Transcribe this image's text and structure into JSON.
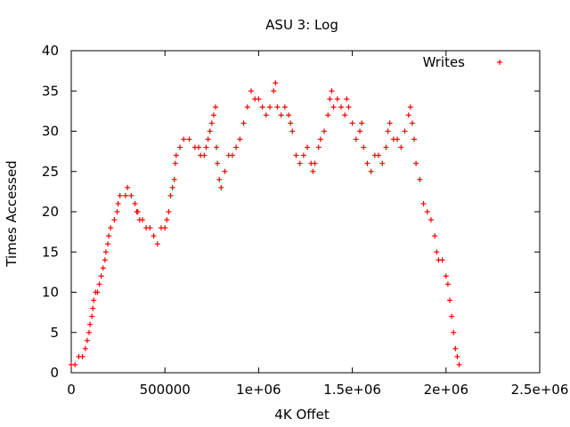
{
  "chart_data": {
    "type": "scatter",
    "title": "ASU 3: Log",
    "xlabel": "4K Offet",
    "ylabel": "Times Accessed",
    "xlim": [
      0,
      2500000
    ],
    "ylim": [
      0,
      40
    ],
    "x_ticks": [
      {
        "value": 0,
        "label": "0"
      },
      {
        "value": 500000,
        "label": "500000"
      },
      {
        "value": 1000000,
        "label": "1e+06"
      },
      {
        "value": 1500000,
        "label": "1.5e+06"
      },
      {
        "value": 2000000,
        "label": "2e+06"
      },
      {
        "value": 2500000,
        "label": "2.5e+06"
      }
    ],
    "y_ticks": [
      {
        "value": 0,
        "label": "0"
      },
      {
        "value": 5,
        "label": "5"
      },
      {
        "value": 10,
        "label": "10"
      },
      {
        "value": 15,
        "label": "15"
      },
      {
        "value": 20,
        "label": "20"
      },
      {
        "value": 25,
        "label": "25"
      },
      {
        "value": 30,
        "label": "30"
      },
      {
        "value": 35,
        "label": "35"
      },
      {
        "value": 40,
        "label": "40"
      }
    ],
    "grid": false,
    "legend_position": "top-right",
    "series": [
      {
        "name": "Writes",
        "color": "#ff0000",
        "marker": "plus",
        "points": [
          [
            0,
            1
          ],
          [
            20000,
            1
          ],
          [
            40000,
            2
          ],
          [
            60000,
            2
          ],
          [
            75000,
            3
          ],
          [
            85000,
            4
          ],
          [
            95000,
            5
          ],
          [
            100000,
            6
          ],
          [
            110000,
            7
          ],
          [
            115000,
            8
          ],
          [
            120000,
            9
          ],
          [
            130000,
            10
          ],
          [
            140000,
            10
          ],
          [
            150000,
            11
          ],
          [
            160000,
            12
          ],
          [
            170000,
            13
          ],
          [
            180000,
            14
          ],
          [
            185000,
            15
          ],
          [
            195000,
            16
          ],
          [
            200000,
            17
          ],
          [
            210000,
            18
          ],
          [
            230000,
            19
          ],
          [
            245000,
            20
          ],
          [
            250000,
            21
          ],
          [
            260000,
            22
          ],
          [
            290000,
            22
          ],
          [
            300000,
            23
          ],
          [
            320000,
            22
          ],
          [
            340000,
            21
          ],
          [
            350000,
            20
          ],
          [
            355000,
            20
          ],
          [
            365000,
            19
          ],
          [
            380000,
            19
          ],
          [
            400000,
            18
          ],
          [
            420000,
            18
          ],
          [
            440000,
            17
          ],
          [
            460000,
            16
          ],
          [
            480000,
            18
          ],
          [
            500000,
            18
          ],
          [
            510000,
            19
          ],
          [
            520000,
            20
          ],
          [
            530000,
            22
          ],
          [
            540000,
            23
          ],
          [
            550000,
            24
          ],
          [
            555000,
            26
          ],
          [
            560000,
            27
          ],
          [
            580000,
            28
          ],
          [
            600000,
            29
          ],
          [
            630000,
            29
          ],
          [
            660000,
            28
          ],
          [
            680000,
            28
          ],
          [
            690000,
            27
          ],
          [
            710000,
            27
          ],
          [
            720000,
            28
          ],
          [
            730000,
            29
          ],
          [
            740000,
            30
          ],
          [
            750000,
            31
          ],
          [
            760000,
            32
          ],
          [
            770000,
            33
          ],
          [
            775000,
            28
          ],
          [
            780000,
            26
          ],
          [
            790000,
            24
          ],
          [
            800000,
            23
          ],
          [
            820000,
            25
          ],
          [
            840000,
            27
          ],
          [
            860000,
            27
          ],
          [
            880000,
            28
          ],
          [
            900000,
            29
          ],
          [
            920000,
            31
          ],
          [
            940000,
            33
          ],
          [
            960000,
            35
          ],
          [
            980000,
            34
          ],
          [
            1000000,
            34
          ],
          [
            1020000,
            33
          ],
          [
            1040000,
            32
          ],
          [
            1060000,
            33
          ],
          [
            1080000,
            35
          ],
          [
            1090000,
            36
          ],
          [
            1100000,
            33
          ],
          [
            1120000,
            32
          ],
          [
            1140000,
            33
          ],
          [
            1160000,
            32
          ],
          [
            1170000,
            31
          ],
          [
            1180000,
            30
          ],
          [
            1200000,
            27
          ],
          [
            1220000,
            26
          ],
          [
            1240000,
            27
          ],
          [
            1260000,
            28
          ],
          [
            1280000,
            26
          ],
          [
            1290000,
            25
          ],
          [
            1300000,
            26
          ],
          [
            1320000,
            28
          ],
          [
            1330000,
            29
          ],
          [
            1350000,
            30
          ],
          [
            1370000,
            32
          ],
          [
            1380000,
            34
          ],
          [
            1390000,
            35
          ],
          [
            1400000,
            33
          ],
          [
            1420000,
            34
          ],
          [
            1440000,
            33
          ],
          [
            1460000,
            32
          ],
          [
            1470000,
            34
          ],
          [
            1480000,
            33
          ],
          [
            1500000,
            31
          ],
          [
            1520000,
            29
          ],
          [
            1540000,
            30
          ],
          [
            1550000,
            31
          ],
          [
            1560000,
            28
          ],
          [
            1580000,
            26
          ],
          [
            1600000,
            25
          ],
          [
            1620000,
            27
          ],
          [
            1640000,
            27
          ],
          [
            1660000,
            26
          ],
          [
            1680000,
            28
          ],
          [
            1690000,
            30
          ],
          [
            1700000,
            31
          ],
          [
            1720000,
            29
          ],
          [
            1740000,
            29
          ],
          [
            1760000,
            28
          ],
          [
            1780000,
            30
          ],
          [
            1800000,
            32
          ],
          [
            1810000,
            33
          ],
          [
            1820000,
            31
          ],
          [
            1830000,
            29
          ],
          [
            1840000,
            26
          ],
          [
            1860000,
            24
          ],
          [
            1880000,
            21
          ],
          [
            1900000,
            20
          ],
          [
            1920000,
            19
          ],
          [
            1940000,
            17
          ],
          [
            1950000,
            15
          ],
          [
            1960000,
            14
          ],
          [
            1980000,
            14
          ],
          [
            2000000,
            12
          ],
          [
            2010000,
            11
          ],
          [
            2020000,
            9
          ],
          [
            2030000,
            7
          ],
          [
            2040000,
            5
          ],
          [
            2050000,
            3
          ],
          [
            2060000,
            2
          ],
          [
            2070000,
            1
          ]
        ]
      }
    ]
  }
}
